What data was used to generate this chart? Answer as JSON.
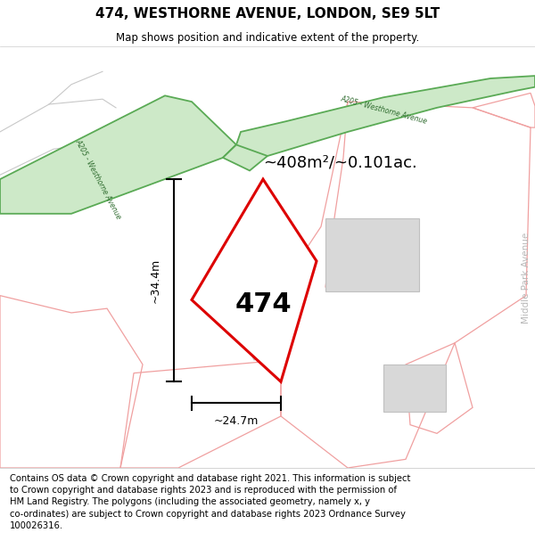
{
  "title": "474, WESTHORNE AVENUE, LONDON, SE9 5LT",
  "subtitle": "Map shows position and indicative extent of the property.",
  "footer": "Contains OS data © Crown copyright and database right 2021. This information is subject\nto Crown copyright and database rights 2023 and is reproduced with the permission of\nHM Land Registry. The polygons (including the associated geometry, namely x, y\nco-ordinates) are subject to Crown copyright and database rights 2023 Ordnance Survey\n100026316.",
  "area_label": "~408m²/~0.101ac.",
  "property_number": "474",
  "dim_width": "~24.7m",
  "dim_height": "~34.4m",
  "road_green_fill": "#cde9c8",
  "road_green_stroke": "#5aaa55",
  "road_label_color": "#2d6a2d",
  "plot_stroke": "#dd0000",
  "other_plot_stroke": "#f0a0a0",
  "building_fill": "#d8d8d8",
  "building_edge": "#c0c0c0",
  "bg_parcel_stroke": "#e8b0b0",
  "street_right_color": "#b8b8b8",
  "street_right_label": "Middle Park Avenue",
  "road_left_label": "A205 - Westhorne Avenue",
  "road_top_label": "A205 - Westhorne Avenue",
  "title_fontsize": 11,
  "subtitle_fontsize": 8.5,
  "footer_fontsize": 7.2,
  "area_fontsize": 13,
  "property_fontsize": 22,
  "dim_fontsize": 9
}
